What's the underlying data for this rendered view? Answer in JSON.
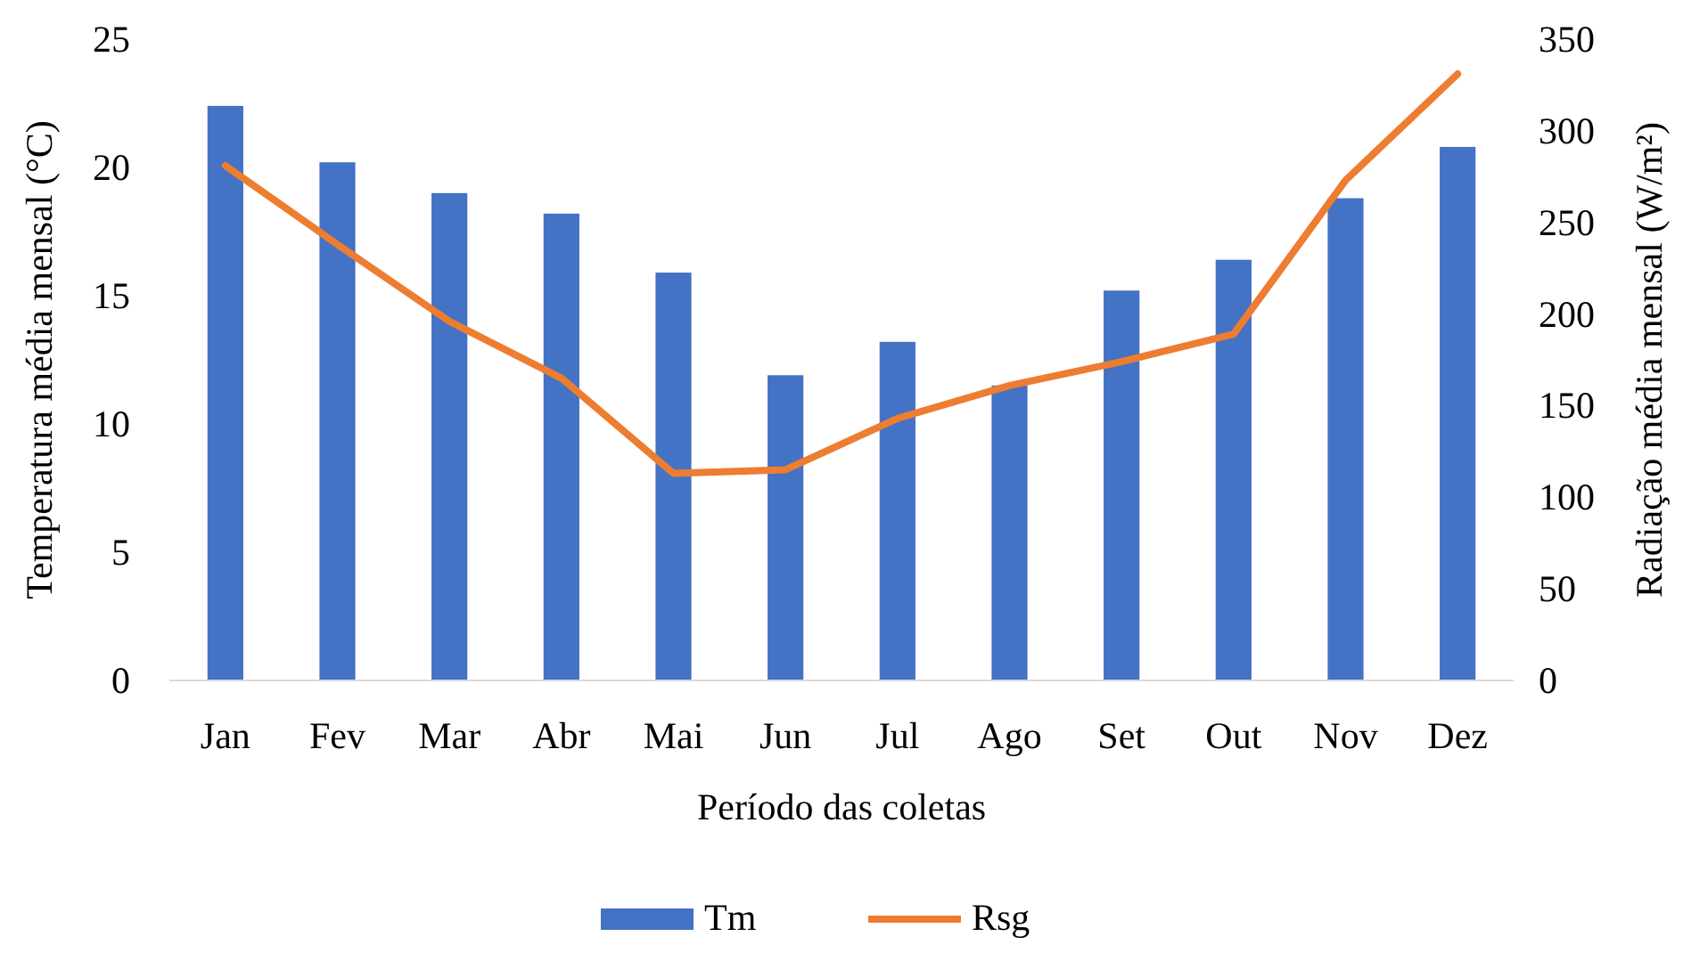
{
  "chart_data": {
    "type": "bar",
    "xlabel": "Período das coletas",
    "ylabel": "Temperatura média mensal (°C)",
    "y2label": "Radiação média mensal (W/m²)",
    "categories": [
      "Jan",
      "Fev",
      "Mar",
      "Abr",
      "Mai",
      "Jun",
      "Jul",
      "Ago",
      "Set",
      "Out",
      "Nov",
      "Dez"
    ],
    "series": [
      {
        "name": "Tm",
        "color": "#4472c4",
        "values": [
          22.4,
          20.2,
          19.0,
          18.2,
          15.9,
          11.9,
          13.2,
          11.5,
          15.2,
          16.4,
          18.8,
          20.8
        ]
      },
      {
        "name": "Rsg",
        "type": "line",
        "axis": "y2",
        "color": "#ed7d31",
        "values": [
          281,
          238,
          196,
          165,
          113,
          115,
          143,
          161,
          174,
          189,
          273,
          331
        ]
      }
    ],
    "ylim": [
      0,
      25
    ],
    "yticks": [
      0,
      5,
      10,
      15,
      20,
      25
    ],
    "y2lim": [
      0,
      350
    ],
    "y2ticks": [
      0,
      50,
      100,
      150,
      200,
      250,
      300,
      350
    ],
    "legend": "bottom",
    "grid": false,
    "marker": "none",
    "line_style": "solid"
  }
}
